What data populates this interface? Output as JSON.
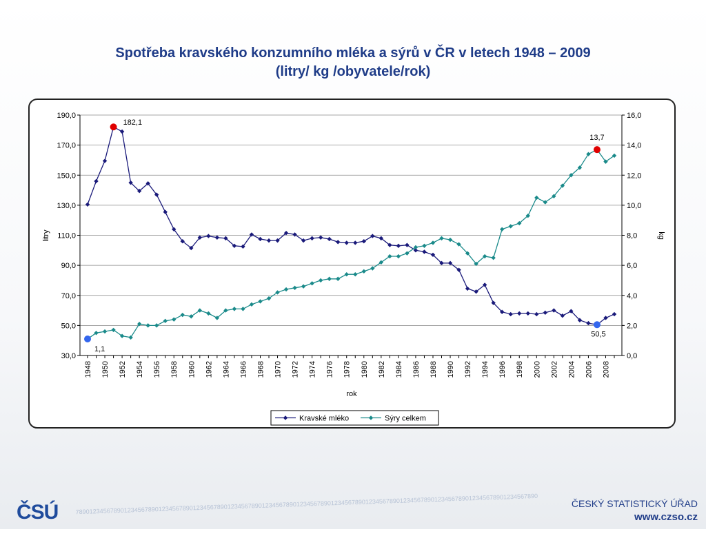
{
  "title": {
    "line1": "Spotřeba kravského konzumního mléka a sýrů v ČR v letech 1948 – 2009",
    "line2": "(litry/ kg /obyvatele/rok)"
  },
  "chart_data": {
    "type": "line",
    "xlabel": "rok",
    "ylabel_left": "litry",
    "ylabel_right": "kg",
    "ylim_left": [
      30,
      190
    ],
    "ylim_right": [
      0,
      16
    ],
    "yticks_left": [
      "190,0",
      "170,0",
      "150,0",
      "130,0",
      "110,0",
      "90,0",
      "70,0",
      "50,0",
      "30,0"
    ],
    "yticks_right": [
      "16,0",
      "14,0",
      "12,0",
      "10,0",
      "8,0",
      "6,0",
      "4,0",
      "2,0",
      "0,0"
    ],
    "x": [
      1948,
      1949,
      1950,
      1951,
      1952,
      1953,
      1954,
      1955,
      1956,
      1957,
      1958,
      1959,
      1960,
      1961,
      1962,
      1963,
      1964,
      1965,
      1966,
      1967,
      1968,
      1969,
      1970,
      1971,
      1972,
      1973,
      1974,
      1975,
      1976,
      1977,
      1978,
      1979,
      1980,
      1981,
      1982,
      1983,
      1984,
      1985,
      1986,
      1987,
      1988,
      1989,
      1990,
      1991,
      1992,
      1993,
      1994,
      1995,
      1996,
      1997,
      1998,
      1999,
      2000,
      2001,
      2002,
      2003,
      2004,
      2005,
      2006,
      2007,
      2008,
      2009
    ],
    "xtick_labels": [
      "1948",
      "1950",
      "1952",
      "1954",
      "1956",
      "1958",
      "1960",
      "1962",
      "1964",
      "1966",
      "1968",
      "1970",
      "1972",
      "1974",
      "1976",
      "1978",
      "1980",
      "1982",
      "1984",
      "1986",
      "1988",
      "1990",
      "1992",
      "1994",
      "1996",
      "1998",
      "2000",
      "2002",
      "2004",
      "2006",
      "2008"
    ],
    "grid": true,
    "legend_position": "bottom-center",
    "series": [
      {
        "name": "Kravské mléko",
        "axis": "left",
        "color": "#1a1a7a",
        "marker": "diamond",
        "values": [
          130.5,
          146,
          159.5,
          182.1,
          179,
          145,
          139.5,
          144.5,
          137,
          125.5,
          114,
          106,
          101.5,
          108.5,
          109.5,
          108.5,
          108,
          103,
          102.5,
          110.5,
          107.5,
          106.5,
          106.5,
          111.5,
          110.5,
          106.5,
          108,
          108.5,
          107.5,
          105.5,
          105,
          105,
          106,
          109.5,
          108,
          103.5,
          103,
          103.5,
          100,
          99,
          97,
          91.5,
          91.5,
          87,
          74.5,
          72.5,
          77,
          65,
          59,
          57.5,
          58,
          58,
          57.5,
          58.5,
          60,
          56.5,
          59.5,
          53.5,
          51.5,
          50.5,
          55,
          57.5
        ]
      },
      {
        "name": "Sýry celkem",
        "axis": "right",
        "color": "#1a8a8a",
        "marker": "diamond",
        "values": [
          1.1,
          1.5,
          1.6,
          1.7,
          1.3,
          1.2,
          2.1,
          2.0,
          2.0,
          2.3,
          2.4,
          2.7,
          2.6,
          3.0,
          2.8,
          2.5,
          3.0,
          3.1,
          3.1,
          3.4,
          3.6,
          3.8,
          4.2,
          4.4,
          4.5,
          4.6,
          4.8,
          5.0,
          5.1,
          5.1,
          5.4,
          5.4,
          5.6,
          5.8,
          6.2,
          6.6,
          6.6,
          6.8,
          7.2,
          7.3,
          7.5,
          7.8,
          7.7,
          7.4,
          6.8,
          6.1,
          6.6,
          6.5,
          8.4,
          8.6,
          8.8,
          9.3,
          10.5,
          10.2,
          10.6,
          11.3,
          12.0,
          12.5,
          13.4,
          13.7,
          12.9,
          13.3
        ]
      }
    ],
    "annotations": [
      {
        "text": "182,1",
        "series": "Kravské mléko",
        "year": 1951,
        "marker_color": "#e00000"
      },
      {
        "text": "50,5",
        "series": "Kravské mléko",
        "year": 2007,
        "marker_color": "#3366ee"
      },
      {
        "text": "1,1",
        "series": "Sýry celkem",
        "year": 1948,
        "marker_color": "#3366ee"
      },
      {
        "text": "13,7",
        "series": "Sýry celkem",
        "year": 2007,
        "marker_color": "#e00000"
      }
    ]
  },
  "footer": {
    "logo_text": "ČSÚ",
    "org_name": "ČESKÝ STATISTICKÝ ÚŘAD",
    "url": "www.czso.cz",
    "digit_strip": "78901234567890123456789012345678901234567890123456789012345678901234567890123456789012345678901234567890123456789012345678901234567890"
  }
}
